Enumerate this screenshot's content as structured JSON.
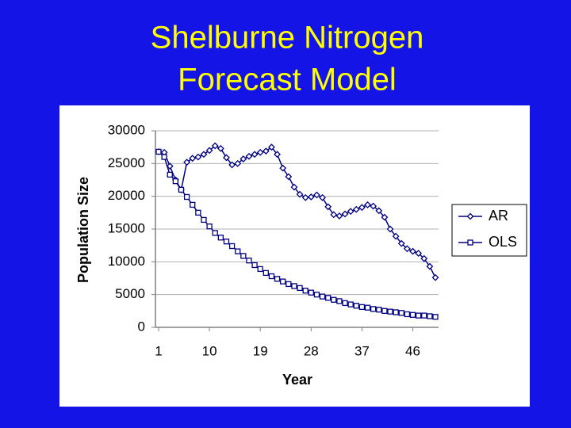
{
  "slide_title": [
    "Shelburne Nitrogen",
    "Forecast Model"
  ],
  "chart_data": {
    "type": "line",
    "x_label": "Year",
    "y_label": "Population Size",
    "x": [
      1,
      2,
      3,
      4,
      5,
      6,
      7,
      8,
      9,
      10,
      11,
      12,
      13,
      14,
      15,
      16,
      17,
      18,
      19,
      20,
      21,
      22,
      23,
      24,
      25,
      26,
      27,
      28,
      29,
      30,
      31,
      32,
      33,
      34,
      35,
      36,
      37,
      38,
      39,
      40,
      41,
      42,
      43,
      44,
      45,
      46,
      47,
      48,
      49,
      50
    ],
    "xlim": [
      1,
      50
    ],
    "xticks": [
      1,
      10,
      19,
      28,
      37,
      46
    ],
    "ylim": [
      0,
      30000
    ],
    "yticks": [
      0,
      5000,
      10000,
      15000,
      20000,
      25000,
      30000
    ],
    "grid": true,
    "legend": "right",
    "series": [
      {
        "name": "AR",
        "color": "#000080",
        "marker": "diamond",
        "values": [
          26800,
          26700,
          24600,
          22500,
          21000,
          25200,
          25800,
          26000,
          26400,
          27000,
          27700,
          27300,
          25900,
          24800,
          25000,
          25700,
          26100,
          26400,
          26700,
          26900,
          27500,
          26400,
          24300,
          23000,
          21400,
          20300,
          19800,
          19900,
          20200,
          19800,
          18400,
          17200,
          17000,
          17300,
          17700,
          18000,
          18300,
          18700,
          18500,
          17800,
          16800,
          15000,
          13900,
          12800,
          12000,
          11600,
          11300,
          10500,
          9300,
          7600
        ]
      },
      {
        "name": "OLS",
        "color": "#000080",
        "marker": "square",
        "values": [
          26800,
          26000,
          23300,
          22300,
          21000,
          19900,
          18700,
          17500,
          16400,
          15400,
          14400,
          13700,
          13100,
          12400,
          11600,
          10900,
          10200,
          9500,
          8900,
          8300,
          7800,
          7400,
          7000,
          6600,
          6300,
          6000,
          5600,
          5300,
          5000,
          4700,
          4500,
          4200,
          4000,
          3700,
          3500,
          3300,
          3100,
          3000,
          2800,
          2700,
          2500,
          2400,
          2300,
          2200,
          2000,
          1900,
          1800,
          1800,
          1700,
          1600
        ]
      }
    ]
  }
}
